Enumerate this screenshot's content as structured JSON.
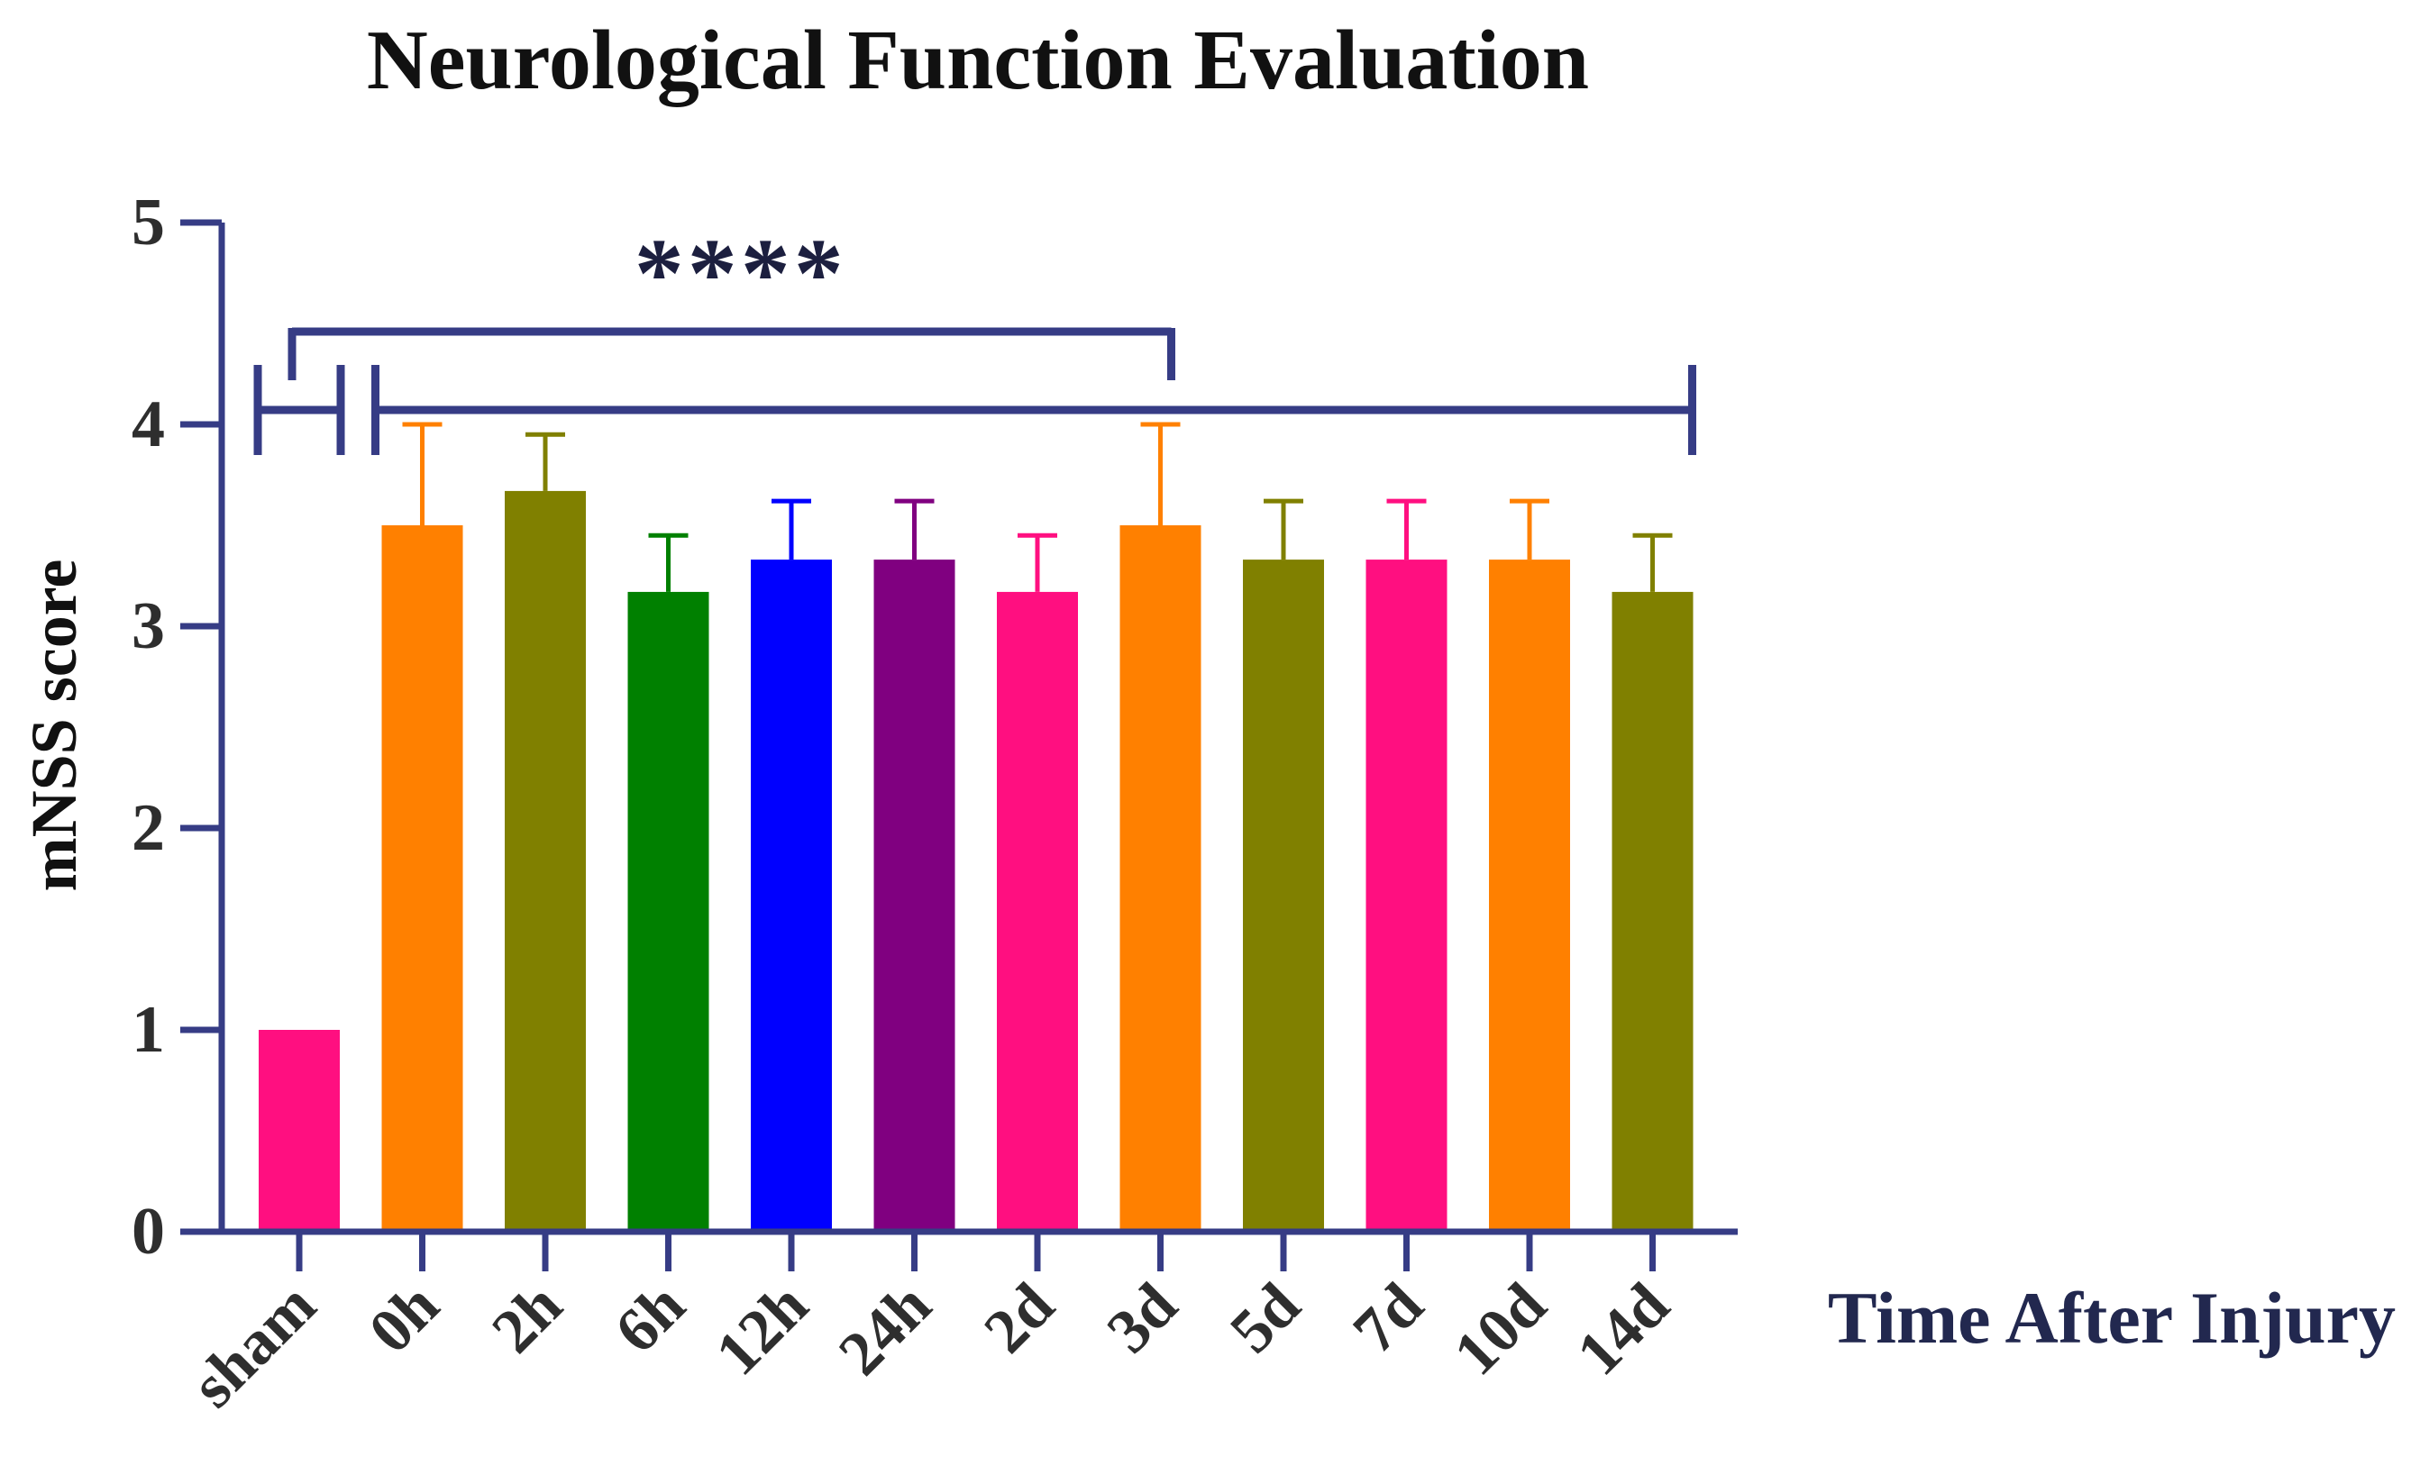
{
  "chart_data": {
    "type": "bar",
    "title": "Neurological Function Evaluation",
    "xlabel": "Time After Injury",
    "ylabel": "mNSS score",
    "ylim": [
      0,
      5
    ],
    "yticks": [
      "0",
      "1",
      "2",
      "3",
      "4",
      "5"
    ],
    "categories": [
      "sham",
      "0h",
      "2h",
      "6h",
      "12h",
      "24h",
      "2d",
      "3d",
      "5d",
      "7d",
      "10d",
      "14d"
    ],
    "values": [
      1.0,
      3.5,
      3.67,
      3.17,
      3.33,
      3.33,
      3.17,
      3.5,
      3.33,
      3.33,
      3.33,
      3.17
    ],
    "error_upper": [
      1.0,
      4.0,
      3.95,
      3.45,
      3.62,
      3.62,
      3.45,
      4.0,
      3.62,
      3.62,
      3.62,
      3.45
    ],
    "colors": [
      "#FF0F80",
      "#FF8000",
      "#808000",
      "#008000",
      "#0000FF",
      "#800080",
      "#FF0F80",
      "#FF8000",
      "#808000",
      "#FF0F80",
      "#FF8000",
      "#808000"
    ],
    "significance": {
      "label": "****",
      "comparison": "sham vs 0h–14d",
      "bracket_label_anchor": "3d"
    },
    "grid": false
  },
  "style": {
    "axis_color": "#363C85",
    "text_color": "#2E2E2E",
    "xlabel_color": "#22284F",
    "stars_color": "#1C1F3F"
  }
}
